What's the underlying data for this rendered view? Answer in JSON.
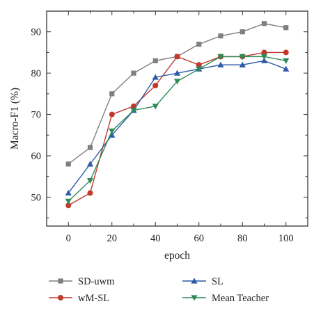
{
  "chart_data": {
    "type": "line",
    "xlabel": "epoch",
    "ylabel": "Macro-F1 (%)",
    "x": [
      0,
      10,
      20,
      30,
      40,
      50,
      60,
      70,
      80,
      90,
      100
    ],
    "xlim": [
      -10,
      110
    ],
    "ylim": [
      43,
      95
    ],
    "xticks": [
      "0",
      "20",
      "40",
      "60",
      "80",
      "100"
    ],
    "yticks": [
      "50",
      "60",
      "70",
      "80",
      "90"
    ],
    "grid": false,
    "legend_placement": "bottom",
    "series": [
      {
        "name": "SD-uwm",
        "marker": "square",
        "color": "#7f7f7f",
        "values": [
          58,
          62,
          75,
          80,
          83,
          84,
          87,
          89,
          90,
          92,
          91
        ]
      },
      {
        "name": "wM-SL",
        "marker": "circle",
        "color": "#c0392b",
        "values": [
          48,
          51,
          70,
          72,
          77,
          84,
          82,
          84,
          84,
          85,
          85
        ]
      },
      {
        "name": "SL",
        "marker": "triangle-up",
        "color": "#2e5aa8",
        "values": [
          51,
          58,
          65,
          71,
          79,
          80,
          81,
          82,
          82,
          83,
          81
        ]
      },
      {
        "name": "Mean Teacher",
        "marker": "triangle-down",
        "color": "#2e8b57",
        "values": [
          49,
          54,
          66,
          71,
          72,
          78,
          81,
          84,
          84,
          84,
          83
        ]
      }
    ]
  }
}
